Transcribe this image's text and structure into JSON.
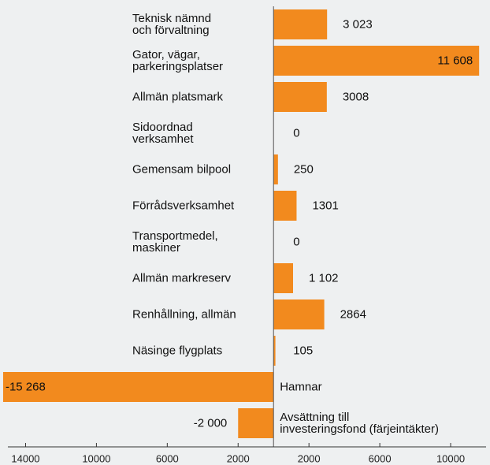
{
  "chart_data": {
    "type": "bar",
    "orientation": "horizontal",
    "categories": [
      "Teknisk nämnd\noch förvaltning",
      "Gator, vägar,\nparkeringsplatser",
      "Allmän platsmark",
      "Sidoordnad\nverksamhet",
      "Gemensam bilpool",
      "Förrådsverksamhet",
      "Transportmedel,\nmaskiner",
      "Allmän markreserv",
      "Renhållning, allmän",
      "Näsinge flygplats",
      "Hamnar",
      "Avsättning till\ninvesteringsfond (färjeintäkter)"
    ],
    "values": [
      3023,
      11608,
      3008,
      0,
      250,
      1301,
      0,
      1102,
      2864,
      105,
      -15268,
      -2000
    ],
    "value_labels": [
      "3 023",
      "11 608",
      "3008",
      "0",
      "250",
      "1301",
      "0",
      "1 102",
      "2864",
      "105",
      "-15 268",
      "-2 000"
    ],
    "color": "#f28a1e",
    "xlim": [
      -15400,
      12000
    ],
    "xticks": [
      {
        "value": -14000,
        "label": "14000"
      },
      {
        "value": -10000,
        "label": "10000"
      },
      {
        "value": -6000,
        "label": "6000"
      },
      {
        "value": -2000,
        "label": "2000"
      },
      {
        "value": 2000,
        "label": "2000"
      },
      {
        "value": 6000,
        "label": "6000"
      },
      {
        "value": 10000,
        "label": "10000"
      }
    ]
  }
}
